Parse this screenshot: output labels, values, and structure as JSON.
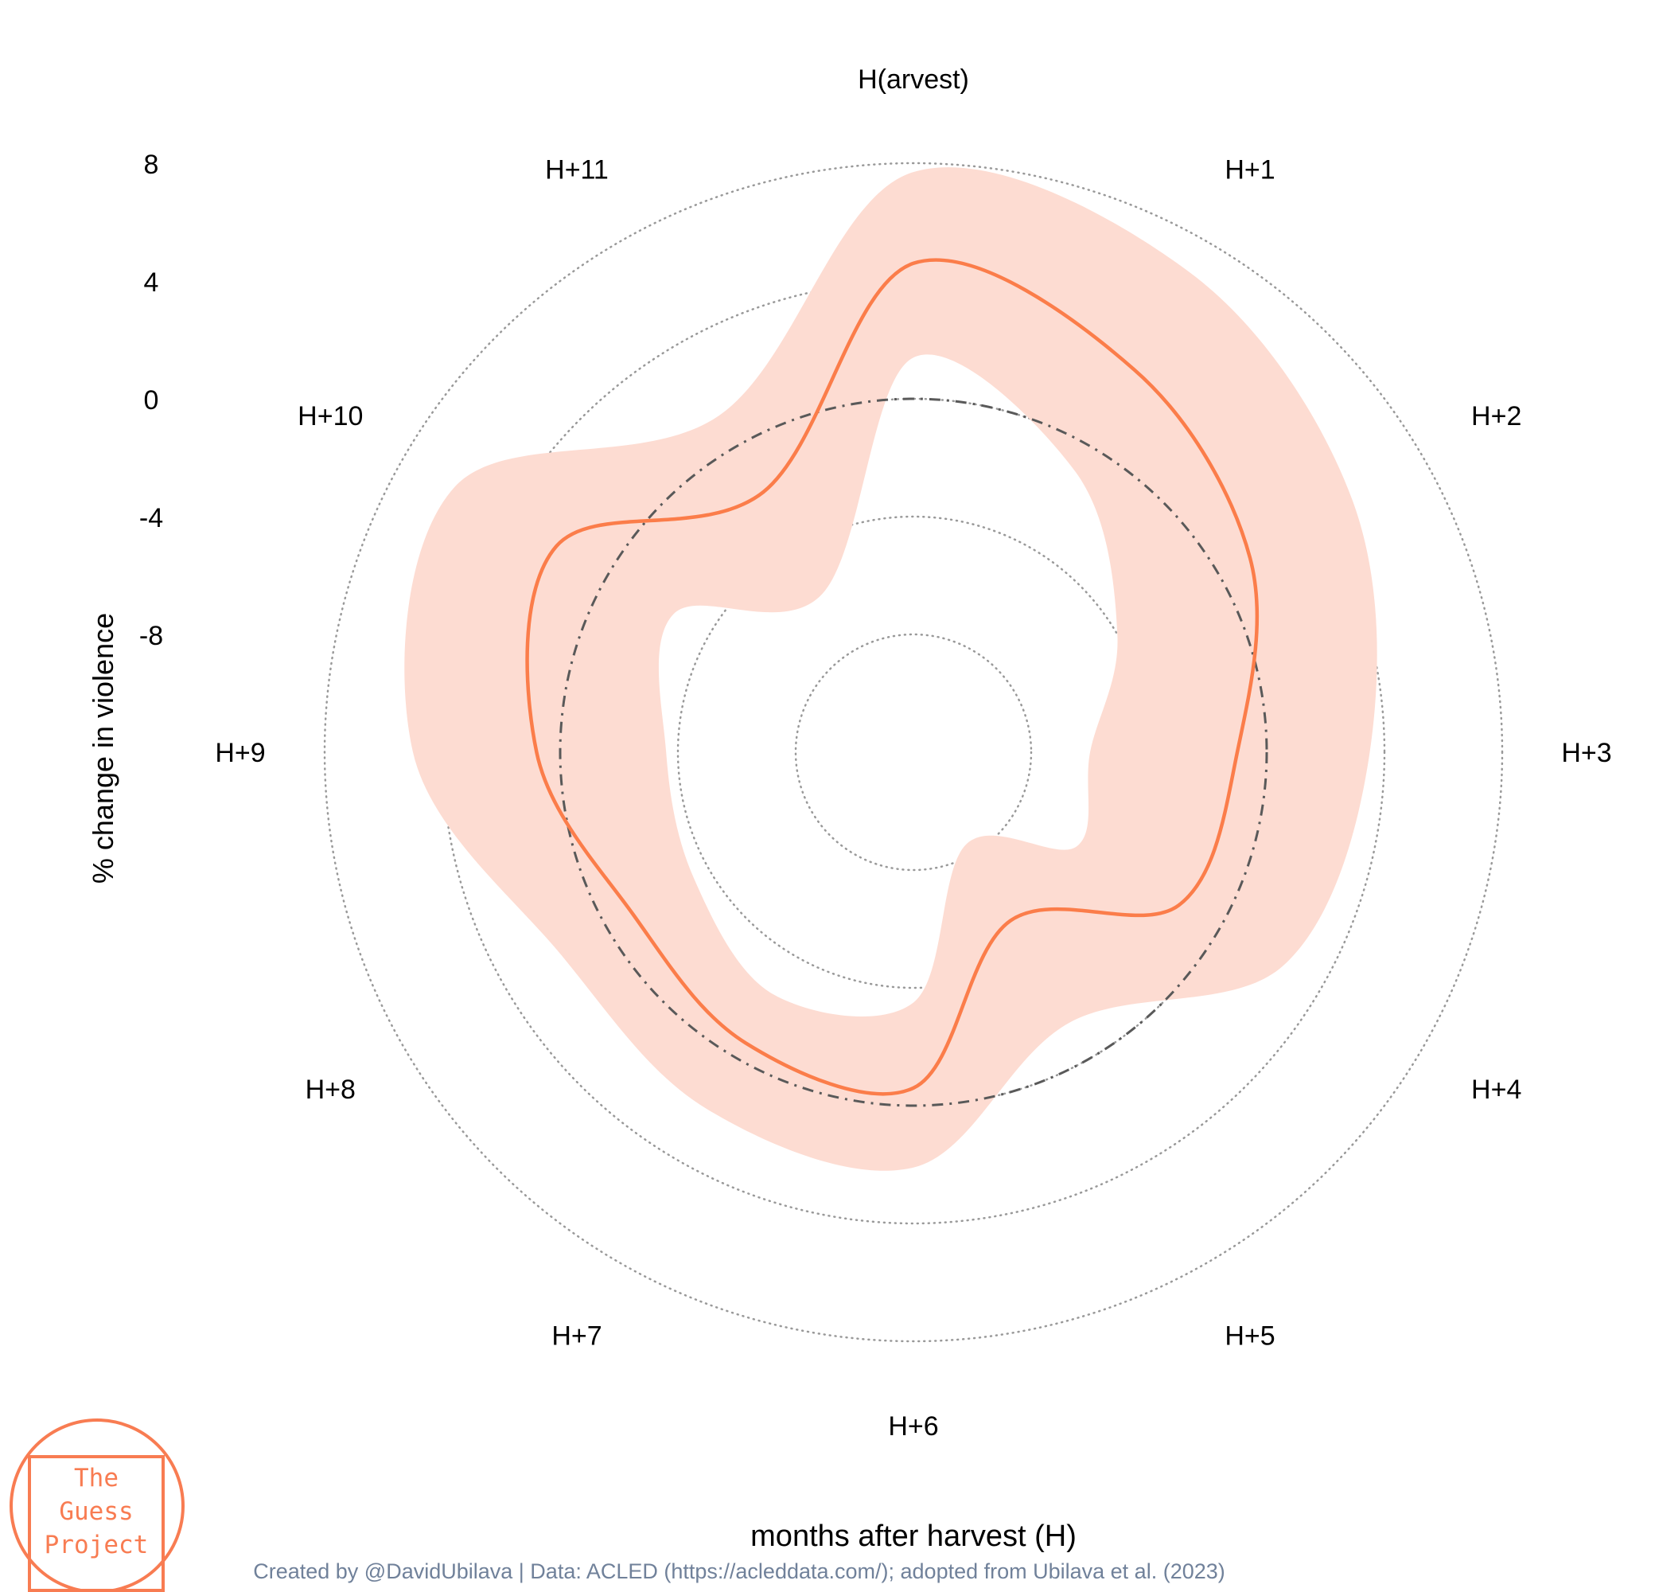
{
  "chart_data": {
    "type": "radar",
    "categories": [
      "H(arvest)",
      "H+1",
      "H+2",
      "H+3",
      "H+4",
      "H+5",
      "H+6",
      "H+7",
      "H+8",
      "H+9",
      "H+10",
      "H+11"
    ],
    "series": [
      {
        "values": [
          4.6,
          3.0,
          1.2,
          -1.0,
          -1.6,
          -5.4,
          -0.6,
          -0.6,
          -1.0,
          0.8,
          2.0,
          -1.8
        ],
        "lower": [
          1.4,
          -1.0,
          -4.0,
          -6.0,
          -5.6,
          -8.4,
          -3.5,
          -2.5,
          -3.4,
          -3.6,
          -2.6,
          -5.8
        ],
        "upper": [
          7.7,
          6.8,
          5.2,
          3.5,
          2.5,
          -1.4,
          2.1,
          2.0,
          1.8,
          5.0,
          6.0,
          1.2
        ]
      }
    ],
    "reference_line": 0,
    "radial_ticks": [
      "8",
      "4",
      "0",
      "-4",
      "-8"
    ],
    "radial_tick_values": [
      8,
      4,
      0,
      -4,
      -8
    ],
    "rlim": [
      -12,
      8
    ],
    "ylabel": "% change in violence",
    "xlabel": "months after harvest (H)",
    "grid": true
  },
  "caption": "Created by @DavidUbilava | Data: ACLED (https://acleddata.com/); adopted from Ubilava et al. (2023)",
  "logo": {
    "line1": "The",
    "line2": "Guess",
    "line3": "Project"
  },
  "colors": {
    "line": "#fb7d4a",
    "band": "#fddcd2",
    "grid": "#999999",
    "reference": "#595959",
    "logo": "#f87c52",
    "caption": "#70819a"
  }
}
